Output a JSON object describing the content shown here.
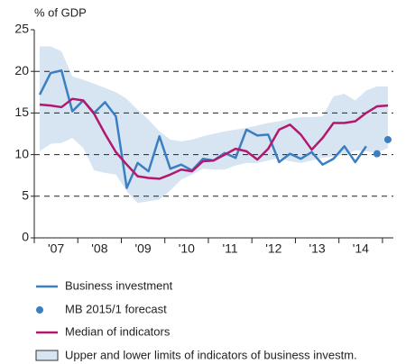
{
  "chart_data": {
    "type": "line",
    "title": "% of GDP",
    "x": [
      2007.125,
      2007.375,
      2007.625,
      2007.875,
      2008.125,
      2008.375,
      2008.625,
      2008.875,
      2009.125,
      2009.375,
      2009.625,
      2009.875,
      2010.125,
      2010.375,
      2010.625,
      2010.875,
      2011.125,
      2011.375,
      2011.625,
      2011.875,
      2012.125,
      2012.375,
      2012.625,
      2012.875,
      2013.125,
      2013.375,
      2013.625,
      2013.875,
      2014.125,
      2014.375,
      2014.625,
      2014.875,
      2015.125
    ],
    "xlim": [
      2007,
      2015.25
    ],
    "xticks": [
      2007,
      2008,
      2009,
      2010,
      2011,
      2012,
      2013,
      2014,
      2015
    ],
    "xlabels": [
      {
        "value": 2007.5,
        "label": "'07"
      },
      {
        "value": 2008.5,
        "label": "'08"
      },
      {
        "value": 2009.5,
        "label": "'09"
      },
      {
        "value": 2010.5,
        "label": "'10"
      },
      {
        "value": 2011.5,
        "label": "'11"
      },
      {
        "value": 2012.5,
        "label": "'12"
      },
      {
        "value": 2013.5,
        "label": "'13"
      },
      {
        "value": 2014.5,
        "label": "'14"
      }
    ],
    "ylim": [
      0,
      25
    ],
    "yticks": [
      0,
      5,
      10,
      15,
      20,
      25
    ],
    "grid": true,
    "band": {
      "name": "Upper and lower limits of indicators of business investm.",
      "color": "#d7e5f3",
      "upper": [
        23.0,
        23.0,
        22.4,
        19.4,
        19.0,
        18.5,
        18.0,
        17.5,
        16.7,
        15.4,
        14.2,
        12.8,
        11.8,
        11.6,
        11.8,
        12.2,
        12.5,
        12.8,
        13.0,
        13.2,
        13.5,
        13.8,
        14.0,
        14.3,
        14.5,
        14.5,
        14.6,
        17.0,
        17.3,
        16.5,
        17.7,
        18.2,
        18.2
      ],
      "lower": [
        10.4,
        11.3,
        11.4,
        12.0,
        10.8,
        8.1,
        7.8,
        7.6,
        5.6,
        4.2,
        4.4,
        4.6,
        5.7,
        7.0,
        7.6,
        8.3,
        8.2,
        8.2,
        8.7,
        9.0,
        9.0,
        9.3,
        9.6,
        9.2,
        9.0,
        9.3,
        9.6,
        9.8,
        10.0,
        10.5,
        10.4,
        10.2,
        10.8
      ]
    },
    "series": [
      {
        "name": "Business investment",
        "color": "#3b7fc2",
        "style": "line",
        "values": [
          17.2,
          19.8,
          20.1,
          15.2,
          16.5,
          15.0,
          16.3,
          14.6,
          6.0,
          9.0,
          8.0,
          12.2,
          8.3,
          8.8,
          8.1,
          9.5,
          9.3,
          10.2,
          9.6,
          13.0,
          12.3,
          12.4,
          9.1,
          10.1,
          9.5,
          10.3,
          8.8,
          9.5,
          11.0,
          9.1,
          11.0,
          null,
          null
        ]
      },
      {
        "name": "MB 2015/1 forecast",
        "color": "#3b7fc2",
        "style": "dot",
        "values": [
          null,
          null,
          null,
          null,
          null,
          null,
          null,
          null,
          null,
          null,
          null,
          null,
          null,
          null,
          null,
          null,
          null,
          null,
          null,
          null,
          null,
          null,
          null,
          null,
          null,
          null,
          null,
          null,
          null,
          null,
          null,
          10.1,
          11.8
        ]
      },
      {
        "name": "Median of indicators",
        "color": "#b3186e",
        "style": "line",
        "values": [
          16.0,
          15.9,
          15.7,
          16.7,
          16.5,
          14.9,
          12.5,
          10.3,
          8.8,
          7.4,
          7.2,
          7.1,
          7.6,
          8.2,
          8.0,
          9.2,
          9.3,
          10.0,
          10.7,
          10.4,
          9.4,
          10.7,
          13.0,
          13.6,
          12.4,
          10.6,
          12.0,
          13.8,
          13.8,
          14.0,
          15.0,
          15.8,
          15.9
        ]
      }
    ]
  }
}
